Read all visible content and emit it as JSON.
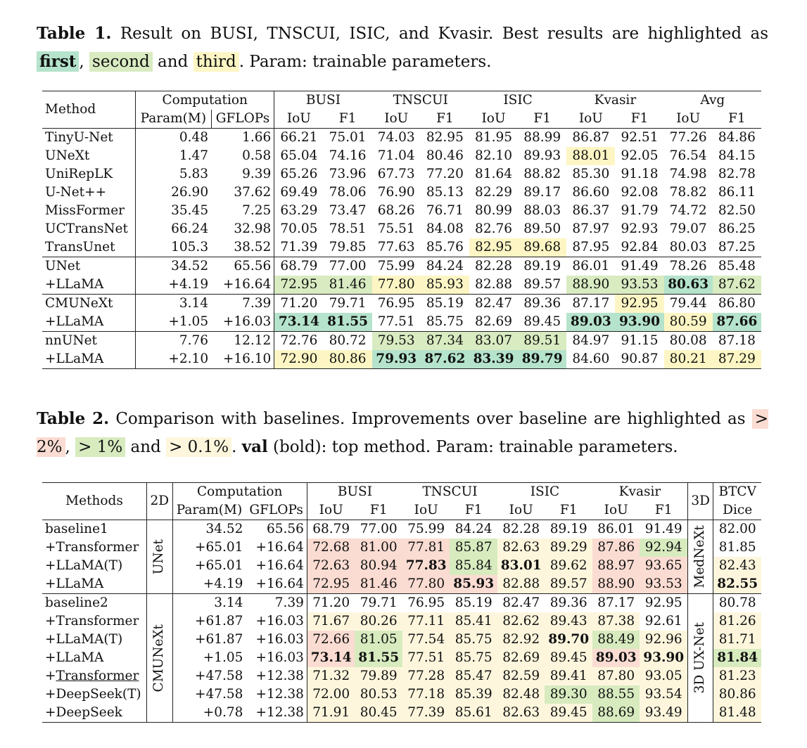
{
  "table1": {
    "caption": {
      "label": "Table 1.",
      "text1": " Result on BUSI, TNSCUI, ISIC, and Kvasir. Best results are highlighted as ",
      "first": "first",
      "comma": ", ",
      "second": "second",
      "and": " and ",
      "third": "third",
      "text2": ". Param: trainable parameters."
    },
    "headers": {
      "method": "Method",
      "computation": "Computation",
      "param": "Param(M)",
      "gflops": "GFLOPs",
      "groups": [
        "BUSI",
        "TNSCUI",
        "ISIC",
        "Kvasir",
        "Avg"
      ],
      "iou": "IoU",
      "f1": "F1"
    },
    "rows": [
      {
        "name": "TinyU-Net",
        "param": "0.48",
        "gflops": "1.66",
        "vals": [
          "66.21",
          "75.01",
          "74.03",
          "82.95",
          "81.95",
          "88.99",
          "86.87",
          "92.51",
          "77.26",
          "84.86"
        ],
        "hl": [
          "",
          "",
          "",
          "",
          "",
          "",
          "",
          "",
          "",
          ""
        ],
        "bold": [
          0,
          0,
          0,
          0,
          0,
          0,
          0,
          0,
          0,
          0
        ]
      },
      {
        "name": "UNeXt",
        "param": "1.47",
        "gflops": "0.58",
        "vals": [
          "65.04",
          "74.16",
          "71.04",
          "80.46",
          "82.10",
          "89.93",
          "88.01",
          "92.05",
          "76.54",
          "84.15"
        ],
        "hl": [
          "",
          "",
          "",
          "",
          "",
          "",
          "3",
          "",
          "",
          ""
        ],
        "bold": [
          0,
          0,
          0,
          0,
          0,
          0,
          0,
          0,
          0,
          0
        ]
      },
      {
        "name": "UniRepLK",
        "param": "5.83",
        "gflops": "9.39",
        "vals": [
          "65.26",
          "73.96",
          "67.73",
          "77.20",
          "81.64",
          "88.82",
          "85.30",
          "91.18",
          "74.98",
          "82.78"
        ],
        "hl": [
          "",
          "",
          "",
          "",
          "",
          "",
          "",
          "",
          "",
          ""
        ],
        "bold": [
          0,
          0,
          0,
          0,
          0,
          0,
          0,
          0,
          0,
          0
        ]
      },
      {
        "name": "U-Net++",
        "param": "26.90",
        "gflops": "37.62",
        "vals": [
          "69.49",
          "78.06",
          "76.90",
          "85.13",
          "82.29",
          "89.17",
          "86.60",
          "92.08",
          "78.82",
          "86.11"
        ],
        "hl": [
          "",
          "",
          "",
          "",
          "",
          "",
          "",
          "",
          "",
          ""
        ],
        "bold": [
          0,
          0,
          0,
          0,
          0,
          0,
          0,
          0,
          0,
          0
        ]
      },
      {
        "name": "MissFormer",
        "param": "35.45",
        "gflops": "7.25",
        "vals": [
          "63.29",
          "73.47",
          "68.26",
          "76.71",
          "80.99",
          "88.03",
          "86.37",
          "91.79",
          "74.72",
          "82.50"
        ],
        "hl": [
          "",
          "",
          "",
          "",
          "",
          "",
          "",
          "",
          "",
          ""
        ],
        "bold": [
          0,
          0,
          0,
          0,
          0,
          0,
          0,
          0,
          0,
          0
        ]
      },
      {
        "name": "UCTransNet",
        "param": "66.24",
        "gflops": "32.98",
        "vals": [
          "70.05",
          "78.51",
          "75.51",
          "84.08",
          "82.76",
          "89.50",
          "87.97",
          "92.93",
          "79.07",
          "86.25"
        ],
        "hl": [
          "",
          "",
          "",
          "",
          "",
          "",
          "",
          "",
          "",
          ""
        ],
        "bold": [
          0,
          0,
          0,
          0,
          0,
          0,
          0,
          0,
          0,
          0
        ]
      },
      {
        "name": "TransUnet",
        "param": "105.3",
        "gflops": "38.52",
        "vals": [
          "71.39",
          "79.85",
          "77.63",
          "85.76",
          "82.95",
          "89.68",
          "87.95",
          "92.84",
          "80.03",
          "87.25"
        ],
        "hl": [
          "",
          "",
          "",
          "",
          "3",
          "3",
          "",
          "",
          "",
          ""
        ],
        "bold": [
          0,
          0,
          0,
          0,
          0,
          0,
          0,
          0,
          0,
          0
        ]
      },
      {
        "name": "UNet",
        "param": "34.52",
        "gflops": "65.56",
        "vals": [
          "68.79",
          "77.00",
          "75.99",
          "84.24",
          "82.28",
          "89.19",
          "86.01",
          "91.49",
          "78.26",
          "85.48"
        ],
        "hl": [
          "",
          "",
          "",
          "",
          "",
          "",
          "",
          "",
          "",
          ""
        ],
        "bold": [
          0,
          0,
          0,
          0,
          0,
          0,
          0,
          0,
          0,
          0
        ],
        "sep": true
      },
      {
        "name": "+LLaMA",
        "param": "+4.19",
        "gflops": "+16.64",
        "vals": [
          "72.95",
          "81.46",
          "77.80",
          "85.93",
          "82.88",
          "89.57",
          "88.90",
          "93.53",
          "80.63",
          "87.62"
        ],
        "hl": [
          "2",
          "2",
          "3",
          "3",
          "",
          "",
          "2",
          "2",
          "1",
          "2"
        ],
        "bold": [
          0,
          0,
          0,
          0,
          0,
          0,
          0,
          0,
          1,
          0
        ]
      },
      {
        "name": "CMUNeXt",
        "param": "3.14",
        "gflops": "7.39",
        "vals": [
          "71.20",
          "79.71",
          "76.95",
          "85.19",
          "82.47",
          "89.36",
          "87.17",
          "92.95",
          "79.44",
          "86.80"
        ],
        "hl": [
          "",
          "",
          "",
          "",
          "",
          "",
          "",
          "3",
          "",
          ""
        ],
        "bold": [
          0,
          0,
          0,
          0,
          0,
          0,
          0,
          0,
          0,
          0
        ],
        "sep": true
      },
      {
        "name": "+LLaMA",
        "param": "+1.05",
        "gflops": "+16.03",
        "vals": [
          "73.14",
          "81.55",
          "77.51",
          "85.75",
          "82.69",
          "89.45",
          "89.03",
          "93.90",
          "80.59",
          "87.66"
        ],
        "hl": [
          "1",
          "1",
          "",
          "",
          "",
          "",
          "1",
          "1",
          "3",
          "1"
        ],
        "bold": [
          1,
          1,
          0,
          0,
          0,
          0,
          1,
          1,
          0,
          1
        ]
      },
      {
        "name": "nnUNet",
        "param": "7.76",
        "gflops": "12.12",
        "vals": [
          "72.76",
          "80.72",
          "79.53",
          "87.34",
          "83.07",
          "89.51",
          "84.97",
          "91.15",
          "80.08",
          "87.18"
        ],
        "hl": [
          "",
          "",
          "2",
          "2",
          "2",
          "2",
          "",
          "",
          "",
          ""
        ],
        "bold": [
          0,
          0,
          0,
          0,
          0,
          0,
          0,
          0,
          0,
          0
        ],
        "sep": true
      },
      {
        "name": "+LLaMA",
        "param": "+2.10",
        "gflops": "+16.10",
        "vals": [
          "72.90",
          "80.86",
          "79.93",
          "87.62",
          "83.39",
          "89.79",
          "84.60",
          "90.87",
          "80.21",
          "87.29"
        ],
        "hl": [
          "3",
          "3",
          "1",
          "1",
          "1",
          "1",
          "",
          "",
          "3",
          "3"
        ],
        "bold": [
          0,
          0,
          1,
          1,
          1,
          1,
          0,
          0,
          0,
          0
        ]
      }
    ]
  },
  "table2": {
    "caption": {
      "label": "Table 2.",
      "text1": " Comparison with baselines. Improvements over baseline are highlighted as ",
      "a": "> 2%",
      "comma": ", ",
      "b": "> 1%",
      "and": " and ",
      "c": "> 0.1%",
      "dot": ". ",
      "val": "val",
      "text2": " (bold): top method. Param: trainable parameters."
    },
    "headers": {
      "methods": "Methods",
      "d2": "2D",
      "computation": "Computation",
      "param": "Param(M)",
      "gflops": "GFLOPs",
      "groups": [
        "BUSI",
        "TNSCUI",
        "ISIC",
        "Kvasir"
      ],
      "iou": "IoU",
      "f1": "F1",
      "d3": "3D",
      "btcv": "BTCV",
      "dice": "Dice"
    },
    "group1": {
      "label2d": "UNet",
      "label3d": "MedNeXt",
      "rows": [
        {
          "name": "baseline1",
          "param": "34.52",
          "gflops": "65.56",
          "vals": [
            "68.79",
            "77.00",
            "75.99",
            "84.24",
            "82.28",
            "89.19",
            "86.01",
            "91.49"
          ],
          "hl": [
            "",
            "",
            "",
            "",
            "",
            "",
            "",
            ""
          ],
          "bold": [
            0,
            0,
            0,
            0,
            0,
            0,
            0,
            0
          ],
          "dice": "82.00",
          "dhl": "",
          "dbold": 0
        },
        {
          "name": "+Transformer",
          "param": "+65.01",
          "gflops": "+16.64",
          "vals": [
            "72.68",
            "81.00",
            "77.81",
            "85.87",
            "82.63",
            "89.29",
            "87.86",
            "92.94"
          ],
          "hl": [
            "A",
            "A",
            "A",
            "B",
            "C",
            "C",
            "A",
            "B"
          ],
          "bold": [
            0,
            0,
            0,
            0,
            0,
            0,
            0,
            0
          ],
          "dice": "81.85",
          "dhl": "",
          "dbold": 0
        },
        {
          "name": "+LLaMA(T)",
          "param": "+65.01",
          "gflops": "+16.64",
          "vals": [
            "72.63",
            "80.94",
            "77.83",
            "85.84",
            "83.01",
            "89.62",
            "88.97",
            "93.65"
          ],
          "hl": [
            "A",
            "A",
            "A",
            "B",
            "C",
            "C",
            "A",
            "A"
          ],
          "bold": [
            0,
            0,
            1,
            0,
            1,
            0,
            0,
            0
          ],
          "dice": "82.43",
          "dhl": "C",
          "dbold": 0
        },
        {
          "name": "+LLaMA",
          "param": "+4.19",
          "gflops": "+16.64",
          "vals": [
            "72.95",
            "81.46",
            "77.80",
            "85.93",
            "82.88",
            "89.57",
            "88.90",
            "93.53"
          ],
          "hl": [
            "A",
            "A",
            "A",
            "A",
            "C",
            "C",
            "A",
            "A"
          ],
          "bold": [
            0,
            0,
            0,
            1,
            0,
            0,
            0,
            0
          ],
          "dice": "82.55",
          "dhl": "C",
          "dbold": 1
        }
      ]
    },
    "group2": {
      "label2d": "CMUNeXt",
      "label3d": "3D UX-Net",
      "rows": [
        {
          "name": "baseline2",
          "param": "3.14",
          "gflops": "7.39",
          "vals": [
            "71.20",
            "79.71",
            "76.95",
            "85.19",
            "82.47",
            "89.36",
            "87.17",
            "92.95"
          ],
          "hl": [
            "",
            "",
            "",
            "",
            "",
            "",
            "",
            ""
          ],
          "bold": [
            0,
            0,
            0,
            0,
            0,
            0,
            0,
            0
          ],
          "dice": "80.78",
          "dhl": "",
          "dbold": 0,
          "u": false
        },
        {
          "name": "+Transformer",
          "param": "+61.87",
          "gflops": "+16.03",
          "vals": [
            "71.67",
            "80.26",
            "77.11",
            "85.41",
            "82.62",
            "89.43",
            "87.38",
            "92.61"
          ],
          "hl": [
            "C",
            "C",
            "C",
            "C",
            "C",
            "C",
            "C",
            ""
          ],
          "bold": [
            0,
            0,
            0,
            0,
            0,
            0,
            0,
            0
          ],
          "dice": "81.26",
          "dhl": "C",
          "dbold": 0,
          "u": false
        },
        {
          "name": "+LLaMA(T)",
          "param": "+61.87",
          "gflops": "+16.03",
          "vals": [
            "72.66",
            "81.05",
            "77.54",
            "85.75",
            "82.92",
            "89.70",
            "88.49",
            "92.96"
          ],
          "hl": [
            "A",
            "B",
            "C",
            "C",
            "C",
            "C",
            "B",
            "C"
          ],
          "bold": [
            0,
            0,
            0,
            0,
            0,
            1,
            0,
            0
          ],
          "dice": "81.71",
          "dhl": "C",
          "dbold": 0,
          "u": false
        },
        {
          "name": "+LLaMA",
          "param": "+1.05",
          "gflops": "+16.03",
          "vals": [
            "73.14",
            "81.55",
            "77.51",
            "85.75",
            "82.69",
            "89.45",
            "89.03",
            "93.90"
          ],
          "hl": [
            "A",
            "B",
            "C",
            "C",
            "C",
            "C",
            "A",
            "C"
          ],
          "bold": [
            1,
            1,
            0,
            0,
            0,
            0,
            1,
            1
          ],
          "dice": "81.84",
          "dhl": "B",
          "dbold": 1,
          "u": false
        },
        {
          "name": "+",
          "uname": "Transformer",
          "param": "+47.58",
          "gflops": "+12.38",
          "vals": [
            "71.32",
            "79.89",
            "77.28",
            "85.47",
            "82.59",
            "89.41",
            "87.80",
            "93.05"
          ],
          "hl": [
            "C",
            "C",
            "C",
            "C",
            "C",
            "C",
            "C",
            "C"
          ],
          "bold": [
            0,
            0,
            0,
            0,
            0,
            0,
            0,
            0
          ],
          "dice": "81.23",
          "dhl": "C",
          "dbold": 0,
          "u": true
        },
        {
          "name": "+DeepSeek(T)",
          "param": "+47.58",
          "gflops": "+12.38",
          "vals": [
            "72.00",
            "80.53",
            "77.18",
            "85.39",
            "82.48",
            "89.30",
            "88.55",
            "93.54"
          ],
          "hl": [
            "C",
            "C",
            "C",
            "C",
            "C",
            "B",
            "B",
            "C"
          ],
          "bold": [
            0,
            0,
            0,
            0,
            0,
            0,
            0,
            0
          ],
          "dice": "80.86",
          "dhl": "C",
          "dbold": 0,
          "u": false
        },
        {
          "name": "+DeepSeek",
          "param": "+0.78",
          "gflops": "+12.38",
          "vals": [
            "71.91",
            "80.45",
            "77.39",
            "85.61",
            "82.63",
            "89.45",
            "88.69",
            "93.49"
          ],
          "hl": [
            "C",
            "C",
            "C",
            "C",
            "C",
            "C",
            "B",
            "C"
          ],
          "bold": [
            0,
            0,
            0,
            0,
            0,
            0,
            0,
            0
          ],
          "dice": "81.48",
          "dhl": "C",
          "dbold": 0,
          "u": false
        }
      ]
    }
  }
}
